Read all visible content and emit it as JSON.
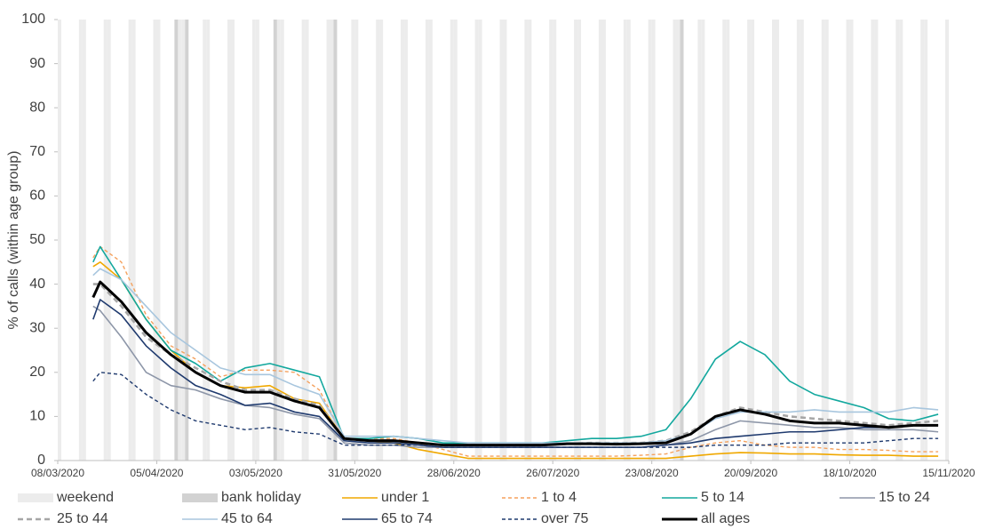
{
  "chart_data": {
    "type": "line",
    "y_label": "% of calls (within age group)",
    "xlim": [
      "08/03/2020",
      "15/11/2020"
    ],
    "xticks": [
      "08/03/2020",
      "05/04/2020",
      "03/05/2020",
      "31/05/2020",
      "28/06/2020",
      "26/07/2020",
      "23/08/2020",
      "20/09/2020",
      "18/10/2020",
      "15/11/2020"
    ],
    "ylim": [
      0,
      100
    ],
    "yticks": [
      0,
      10,
      20,
      30,
      40,
      50,
      60,
      70,
      80,
      90,
      100
    ],
    "weekend": {
      "name": "weekend",
      "color": "#ececec"
    },
    "bank_holiday": {
      "name": "bank holiday",
      "color": "#d2d2d2",
      "dates": [
        "10/04/2020",
        "13/04/2020",
        "08/05/2020",
        "25/05/2020",
        "31/08/2020"
      ]
    },
    "x": [
      "18/03/2020",
      "20/03/2020",
      "26/03/2020",
      "02/04/2020",
      "09/04/2020",
      "16/04/2020",
      "23/04/2020",
      "30/04/2020",
      "07/05/2020",
      "14/05/2020",
      "21/05/2020",
      "28/05/2020",
      "04/06/2020",
      "11/06/2020",
      "18/06/2020",
      "25/06/2020",
      "02/07/2020",
      "09/07/2020",
      "16/07/2020",
      "23/07/2020",
      "30/07/2020",
      "06/08/2020",
      "13/08/2020",
      "20/08/2020",
      "27/08/2020",
      "03/09/2020",
      "10/09/2020",
      "17/09/2020",
      "24/09/2020",
      "01/10/2020",
      "08/10/2020",
      "15/10/2020",
      "22/10/2020",
      "29/10/2020",
      "05/11/2020",
      "12/11/2020"
    ],
    "series": [
      {
        "name": "under 1",
        "color": "#f0a800",
        "style": "solid",
        "values": [
          44,
          45,
          41,
          32,
          25,
          20,
          17,
          16.5,
          17,
          14,
          13,
          5,
          4.5,
          4,
          2.5,
          1.5,
          0.5,
          0.5,
          0.5,
          0.5,
          0.5,
          0.5,
          0.5,
          0.5,
          0.5,
          1,
          1.5,
          1.8,
          1.7,
          1.5,
          1.5,
          1.3,
          1.2,
          1.2,
          1,
          1
        ]
      },
      {
        "name": "1 to 4",
        "color": "#f5a15d",
        "style": "dashed",
        "values": [
          46,
          48.5,
          45,
          33,
          26,
          23,
          19,
          20.5,
          20.5,
          20,
          16,
          5,
          5,
          5,
          4,
          2.5,
          1,
          1,
          1,
          1,
          1,
          1,
          1,
          1.2,
          1.5,
          3,
          4,
          4.5,
          3.5,
          3,
          3,
          2.5,
          2.5,
          2.3,
          2,
          2
        ]
      },
      {
        "name": "5 to 14",
        "color": "#13a89e",
        "style": "solid",
        "values": [
          45,
          48.5,
          41,
          32,
          25,
          22,
          18,
          21,
          22,
          20.5,
          19,
          5,
          5,
          5.5,
          5,
          4,
          4,
          4,
          4,
          4,
          4.5,
          5,
          5,
          5.5,
          7,
          14,
          23,
          27,
          24,
          18,
          15,
          13.5,
          12,
          9.5,
          9,
          10.5
        ]
      },
      {
        "name": "15 to 24",
        "color": "#8d96a8",
        "style": "solid",
        "values": [
          35,
          34,
          28,
          20,
          17,
          16,
          14,
          12.5,
          12,
          10.5,
          9.5,
          4,
          3.5,
          3.5,
          3,
          3,
          3,
          3,
          3,
          3,
          3,
          3,
          3,
          3,
          3.5,
          4.5,
          7,
          9,
          8.5,
          8,
          7.5,
          7.5,
          7,
          7,
          7,
          6.5
        ]
      },
      {
        "name": "25 to 44",
        "color": "#a6a6a6",
        "style": "bold-dashed",
        "values": [
          40,
          40,
          35,
          28,
          24,
          21,
          18,
          16,
          16,
          14,
          12.5,
          5,
          4.5,
          4.5,
          4,
          3.5,
          3.5,
          3.5,
          3.5,
          3.5,
          3.8,
          4,
          4,
          4,
          4.5,
          6.5,
          10,
          12,
          11,
          10,
          9.5,
          9,
          8.5,
          8,
          8.5,
          9
        ]
      },
      {
        "name": "45 to 64",
        "color": "#a8c6de",
        "style": "solid",
        "values": [
          42,
          43.5,
          41,
          35,
          29,
          25,
          21,
          19.5,
          19.5,
          17,
          15,
          5.5,
          5.5,
          5.5,
          5,
          4.5,
          4,
          4,
          4,
          4,
          4,
          4,
          4,
          4,
          4.5,
          6,
          9.5,
          11,
          11,
          11,
          11.5,
          11,
          11,
          11,
          12,
          11.5
        ]
      },
      {
        "name": "65 to 74",
        "color": "#1f3a6e",
        "style": "solid",
        "values": [
          32,
          36.5,
          33,
          26,
          21,
          17,
          15,
          12.5,
          13,
          11,
          10,
          4.5,
          4,
          4,
          3.5,
          3,
          3,
          3,
          3,
          3,
          3,
          3,
          3,
          3,
          3.5,
          4,
          5,
          5.5,
          6,
          6.5,
          6.5,
          7,
          7.5,
          7.5,
          8,
          8
        ]
      },
      {
        "name": "over 75",
        "color": "#1f3a6e",
        "style": "dashed",
        "values": [
          18,
          20,
          19.5,
          15,
          11.5,
          9,
          8,
          7,
          7.5,
          6.5,
          6,
          3.5,
          3.5,
          3.5,
          3.5,
          3,
          3,
          3,
          3,
          3,
          3,
          3,
          3,
          3,
          3,
          3,
          3.5,
          3.5,
          3.5,
          4,
          4,
          4,
          4,
          4.5,
          5,
          5
        ]
      },
      {
        "name": "all ages",
        "color": "#000000",
        "style": "bold",
        "values": [
          37,
          40.5,
          36,
          29,
          24,
          20,
          17,
          15.5,
          15.5,
          13.5,
          12,
          5,
          4.5,
          4.5,
          4,
          3.5,
          3.5,
          3.5,
          3.5,
          3.5,
          3.8,
          3.8,
          3.7,
          3.8,
          4,
          6,
          10,
          11.5,
          10.5,
          9,
          8.5,
          8.5,
          8,
          7.5,
          8,
          8
        ]
      }
    ]
  }
}
